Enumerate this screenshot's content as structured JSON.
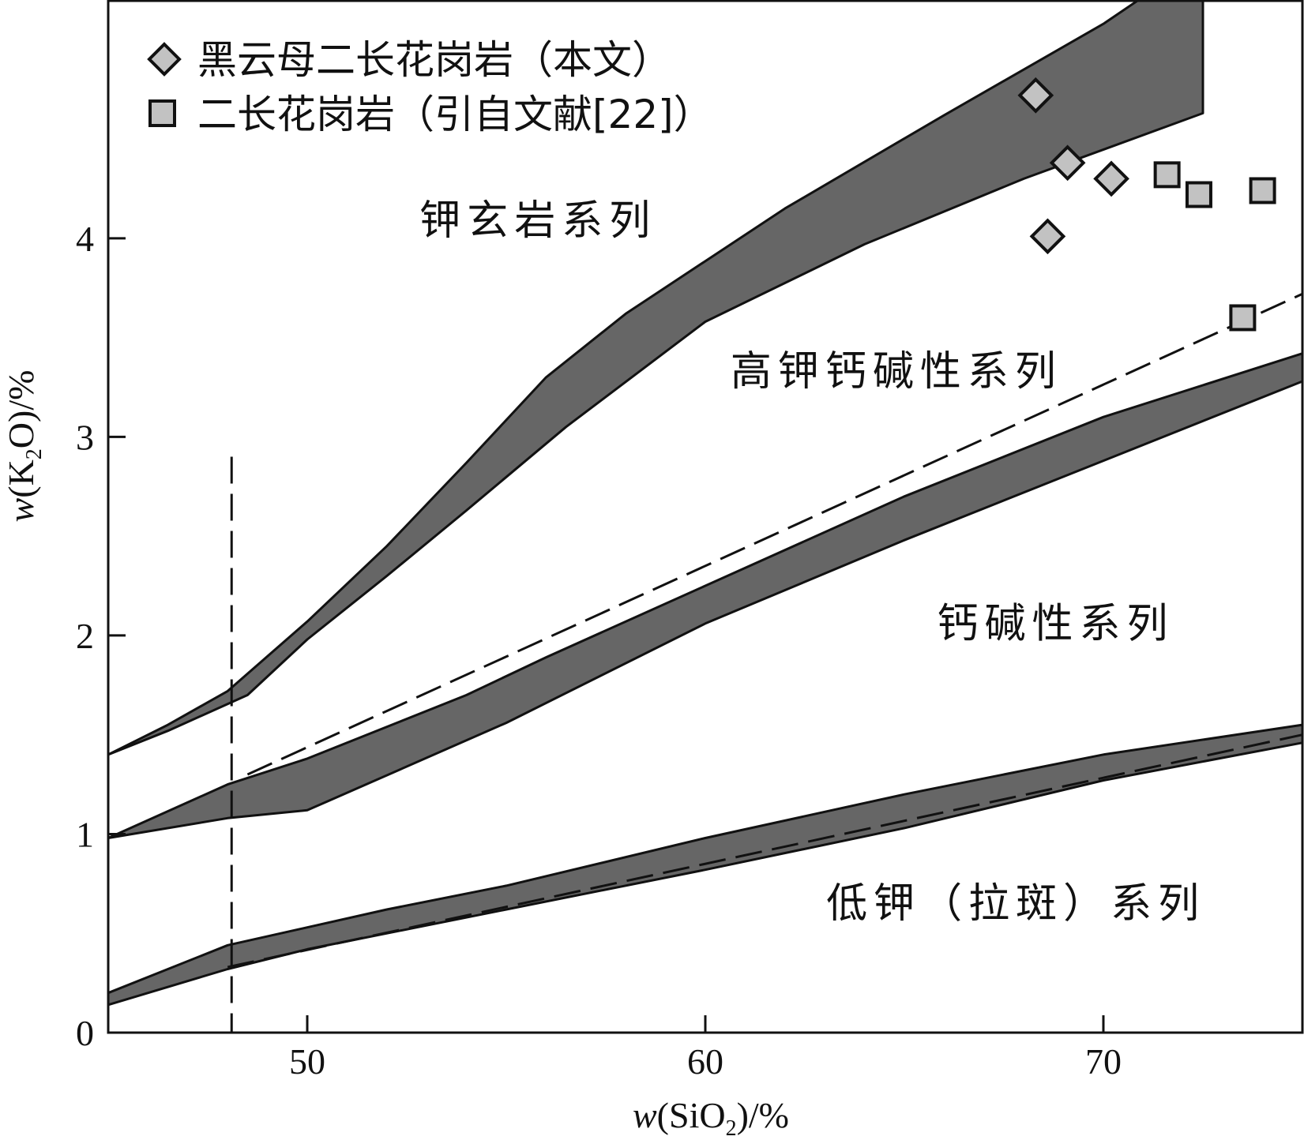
{
  "chart_data": {
    "type": "scatter",
    "x_axis": {
      "label_prefix": "w",
      "label_open": "(SiO",
      "label_sub": "2",
      "label_close": ")/%",
      "range": [
        45,
        75
      ],
      "ticks": [
        50,
        60,
        70
      ],
      "tick_labels": [
        "50",
        "60",
        "70"
      ]
    },
    "y_axis": {
      "label_prefix": "w",
      "label_open": "(K",
      "label_sub": "2",
      "label_close": "O)/%",
      "range": [
        0,
        5.2
      ],
      "ticks": [
        0,
        1,
        2,
        3,
        4
      ],
      "tick_labels": [
        "0",
        "1",
        "2",
        "3",
        "4"
      ]
    },
    "legend": {
      "position": "top-left",
      "entries": [
        {
          "marker": "diamond",
          "label": "黑云母二长花岗岩（本文）"
        },
        {
          "marker": "square",
          "label": "二长花岗岩（引自文献[22]）"
        }
      ]
    },
    "series": [
      {
        "name": "黑云母二长花岗岩（本文）",
        "marker": "diamond",
        "points": [
          [
            68.3,
            4.72
          ],
          [
            69.1,
            4.38
          ],
          [
            70.2,
            4.3
          ],
          [
            68.6,
            4.01
          ]
        ]
      },
      {
        "name": "二长花岗岩（引自文献[22]）",
        "marker": "square",
        "points": [
          [
            71.6,
            4.32
          ],
          [
            72.4,
            4.22
          ],
          [
            74.0,
            4.24
          ],
          [
            73.5,
            3.6
          ]
        ]
      }
    ],
    "boundary_bands": [
      {
        "name": "shoshonite/high-K boundary",
        "upper": [
          [
            45,
            1.4
          ],
          [
            46.5,
            1.55
          ],
          [
            48.0,
            1.72
          ],
          [
            50,
            2.07
          ],
          [
            52,
            2.45
          ],
          [
            54,
            2.87
          ],
          [
            56,
            3.3
          ],
          [
            58,
            3.62
          ],
          [
            62,
            4.15
          ],
          [
            66,
            4.62
          ],
          [
            70,
            5.08
          ],
          [
            72.5,
            5.42
          ]
        ],
        "lower": [
          [
            72.5,
            4.63
          ],
          [
            68,
            4.3
          ],
          [
            64,
            3.97
          ],
          [
            60,
            3.58
          ],
          [
            56.5,
            3.05
          ],
          [
            54,
            2.63
          ],
          [
            52,
            2.3
          ],
          [
            50,
            1.98
          ],
          [
            48.5,
            1.7
          ],
          [
            46.5,
            1.52
          ],
          [
            45,
            1.4
          ]
        ]
      },
      {
        "name": "high-K/calc-alkaline boundary",
        "upper": [
          [
            45,
            0.98
          ],
          [
            48,
            1.25
          ],
          [
            50,
            1.38
          ],
          [
            54,
            1.7
          ],
          [
            56,
            1.89
          ],
          [
            60,
            2.25
          ],
          [
            65,
            2.7
          ],
          [
            70,
            3.1
          ],
          [
            75,
            3.42
          ]
        ],
        "lower": [
          [
            75,
            3.28
          ],
          [
            70,
            2.88
          ],
          [
            65,
            2.48
          ],
          [
            60,
            2.06
          ],
          [
            55,
            1.56
          ],
          [
            50,
            1.12
          ],
          [
            48,
            1.08
          ],
          [
            45,
            0.98
          ]
        ]
      },
      {
        "name": "calc-alkaline/low-K boundary",
        "upper": [
          [
            45,
            0.2
          ],
          [
            48,
            0.44
          ],
          [
            50,
            0.53
          ],
          [
            52,
            0.62
          ],
          [
            55,
            0.74
          ],
          [
            60,
            0.98
          ],
          [
            65,
            1.2
          ],
          [
            70,
            1.4
          ],
          [
            75,
            1.55
          ]
        ],
        "lower": [
          [
            75,
            1.46
          ],
          [
            70,
            1.27
          ],
          [
            65,
            1.03
          ],
          [
            60,
            0.82
          ],
          [
            55,
            0.62
          ],
          [
            50,
            0.42
          ],
          [
            48,
            0.32
          ],
          [
            45,
            0.14
          ]
        ]
      }
    ],
    "dashed_lines": [
      {
        "name": "vertical at SiO2 48",
        "points": [
          [
            48.1,
            2.9
          ],
          [
            48.1,
            0.0
          ]
        ]
      },
      {
        "name": "high-K/medium-K dashed divider",
        "points": [
          [
            48.5,
            1.3
          ],
          [
            75,
            3.72
          ]
        ]
      },
      {
        "name": "low-K dashed divider",
        "points": [
          [
            48,
            0.33
          ],
          [
            75,
            1.5
          ]
        ]
      }
    ],
    "region_labels": [
      {
        "text": "钾玄岩系列",
        "x": 55.8,
        "y": 4.02
      },
      {
        "text": "高钾钙碱性系列",
        "x": 64.8,
        "y": 3.26
      },
      {
        "text": "钙碱性系列",
        "x": 68.8,
        "y": 1.99
      },
      {
        "text": "低钾（拉斑）系列",
        "x": 67.8,
        "y": 0.58
      }
    ],
    "grid": false,
    "colors": {
      "band_fill": "#666666",
      "marker_fill": "#c2c2c2",
      "line": "#111111"
    }
  }
}
